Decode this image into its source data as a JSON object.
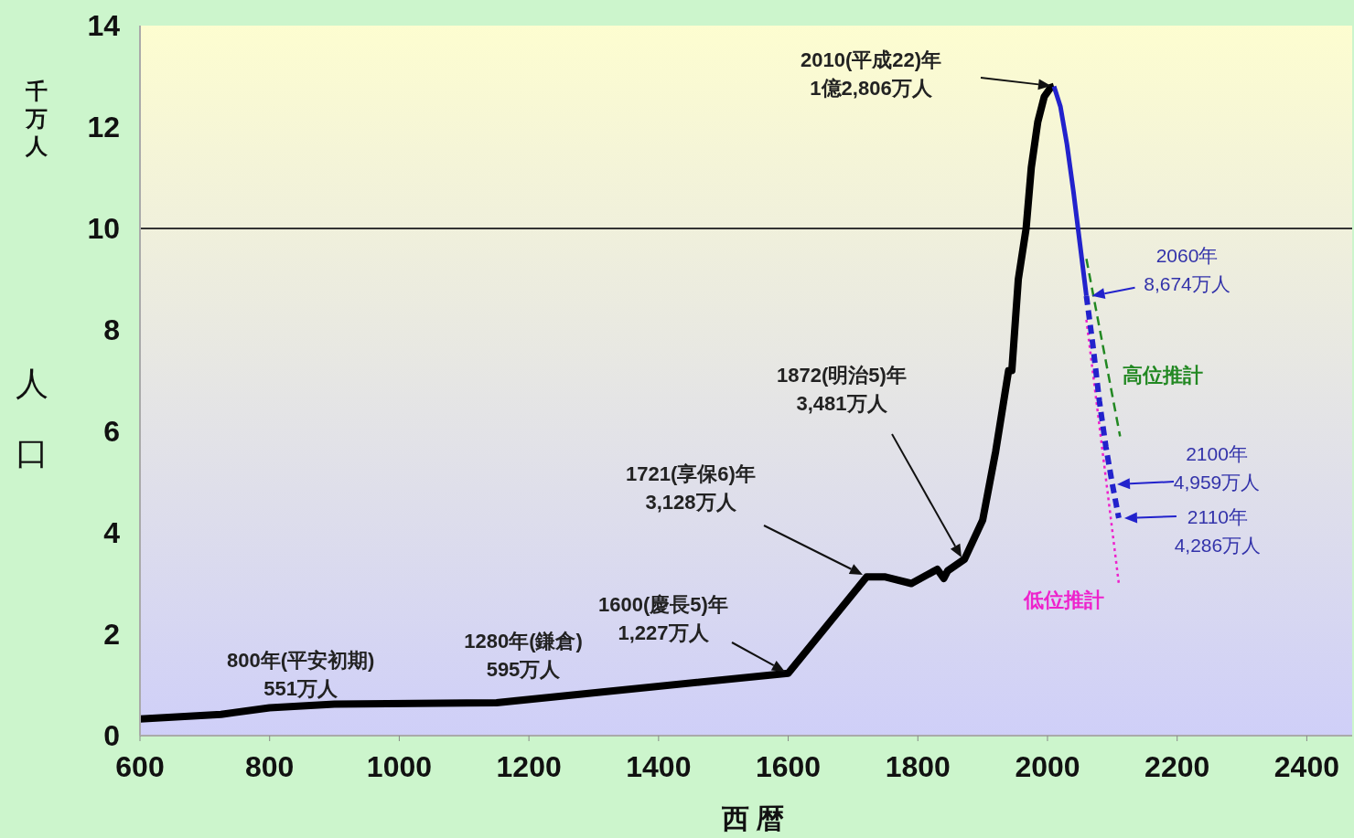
{
  "chart_data": {
    "type": "line",
    "xlabel": "西 暦",
    "ylabel": "人口",
    "xlim": [
      600,
      2470
    ],
    "xticks": [
      600,
      800,
      1000,
      1200,
      1400,
      1600,
      1800,
      2000,
      2200,
      2400
    ],
    "ylim": [
      0,
      14
    ],
    "yticks": [
      0,
      2,
      4,
      6,
      8,
      10,
      12,
      14
    ],
    "ref_lines": [
      {
        "axis": "y",
        "value": 10,
        "color": "#333333"
      }
    ],
    "series": [
      {
        "color": "#000000",
        "line_style": "solid",
        "x": [
          600,
          725,
          800,
          900,
          1150,
          1600,
          1721,
          1750,
          1790,
          1830,
          1840,
          1846,
          1872,
          1900,
          1920,
          1930,
          1940,
          1945,
          1955,
          1967,
          1975,
          1985,
          1995,
          2005,
          2010
        ],
        "values": [
          0.33,
          0.42,
          0.55,
          0.62,
          0.65,
          1.23,
          3.13,
          3.13,
          3.0,
          3.28,
          3.1,
          3.25,
          3.48,
          4.25,
          5.6,
          6.4,
          7.2,
          7.2,
          9.0,
          10.0,
          11.2,
          12.1,
          12.6,
          12.78,
          12.8
        ]
      },
      {
        "name": "高位推計",
        "color": "#228822",
        "line_style": "dashed",
        "x": [
          2060,
          2112
        ],
        "values": [
          9.4,
          5.9
        ]
      },
      {
        "name": "低位推計",
        "color": "#ee22cc",
        "line_style": "dotted",
        "x": [
          2060,
          2110
        ],
        "values": [
          8.2,
          3.0
        ]
      },
      {
        "color": "#2222cc",
        "line_style": "solid",
        "x": [
          2010,
          2020,
          2030,
          2040,
          2050,
          2060
        ],
        "values": [
          12.8,
          12.4,
          11.66,
          10.73,
          9.7,
          8.67
        ]
      },
      {
        "color": "#2222cc",
        "line_style": "dashed",
        "x": [
          2060,
          2070,
          2080,
          2090,
          2100,
          2110
        ],
        "values": [
          8.67,
          7.7,
          6.6,
          5.7,
          4.96,
          4.29
        ]
      }
    ],
    "annotations": [
      {
        "text": "800年(平安初期)\n551万人",
        "x": 800,
        "y": 0.55
      },
      "1280年(鎌倉)\n595万人",
      "1600(慶長5)年\n1,227万人",
      "1721(享保6)年\n3,128万人",
      "1872(明治5)年\n3,481万人",
      "2010(平成22)年\n1億2,806万人",
      {
        "text": "2060年\n8,674万人",
        "x": 2060,
        "y": 8.67
      },
      "2100年\n4,959万人",
      {
        "text": "2110年\n4,286万人",
        "x": 2110,
        "y": 4.29
      },
      "千万人"
    ]
  }
}
